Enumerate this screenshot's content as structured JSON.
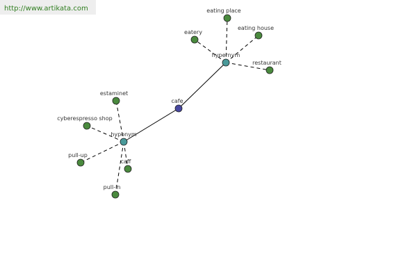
{
  "watermark": "http://www.artikata.com",
  "nodes": [
    {
      "label": "cafe"
    },
    {
      "label": "hypernym"
    },
    {
      "label": "hyponym"
    },
    {
      "label": "eating place"
    },
    {
      "label": "eatery"
    },
    {
      "label": "eating house"
    },
    {
      "label": "restaurant"
    },
    {
      "label": "estaminet"
    },
    {
      "label": "cyberespresso shop"
    },
    {
      "label": "pull-up"
    },
    {
      "label": "caff"
    },
    {
      "label": "pull-in"
    }
  ]
}
